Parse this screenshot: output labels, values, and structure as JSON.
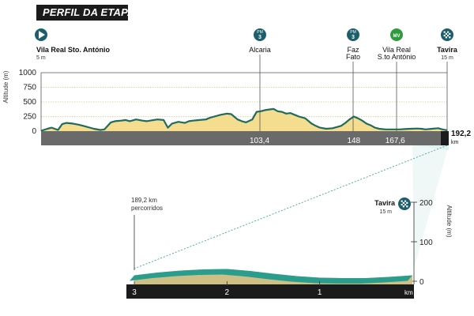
{
  "header": {
    "title": "PERFIL DA ETAPA"
  },
  "colors": {
    "terrain_fill": "#f4dd8f",
    "profile_line": "#1f6b5e",
    "road_bar": "#1b1b1b",
    "road_bar_light": "#6a6a6a",
    "sprint_icon": "#2e9b3e",
    "climb_icon": "#1c5f6b",
    "teal_surface": "#2a9d8c",
    "finish_surface_fill": "#cdbf86",
    "grid_dotted": "#cccc88"
  },
  "markers": [
    {
      "icon": "start-flag-icon",
      "name": "Vila Real Sto. António",
      "sub": "5 m"
    },
    {
      "icon": "mountain-pass-icon",
      "badge_top": "PM",
      "badge_num": "3",
      "name": "Alcaria"
    },
    {
      "icon": "mountain-pass-icon",
      "badge_top": "PM",
      "badge_num": "3",
      "name": "Faz\nFato"
    },
    {
      "icon": "sprint-icon",
      "badge_top": "MV",
      "name": "Vila Real\nS.to António"
    },
    {
      "icon": "finish-flag-icon",
      "name": "Tavira",
      "sub": "15 m"
    }
  ],
  "chart_data": [
    {
      "type": "area",
      "title": "",
      "ylabel": "Altitude (m)",
      "xlabel": "",
      "ylim": [
        0,
        1000
      ],
      "xlim": [
        0,
        192.2
      ],
      "y_ticks": [
        "0",
        "250",
        "500",
        "750",
        "1000"
      ],
      "x_labels": [
        {
          "value": 103.4,
          "label": "103,4"
        },
        {
          "value": 148,
          "label": "148"
        },
        {
          "value": 167.6,
          "label": "167,6"
        }
      ],
      "end_label": "192,2",
      "end_unit": "km",
      "series": [
        {
          "x": [
            0,
            3,
            5,
            8,
            10,
            12,
            15,
            18,
            20,
            25,
            28,
            30,
            33,
            35,
            38,
            40,
            42,
            45,
            48,
            50,
            55,
            58,
            60,
            62,
            65,
            68,
            70,
            72,
            75,
            78,
            80,
            85,
            88,
            90,
            93,
            95,
            97,
            100,
            102,
            104,
            106,
            108,
            110,
            112,
            114,
            116,
            118,
            120,
            122,
            125,
            128,
            130,
            132,
            135,
            138,
            140,
            142,
            144,
            146,
            148,
            150,
            152,
            154,
            156,
            158,
            160,
            163,
            165,
            168,
            170,
            172,
            175,
            178,
            180,
            182,
            185,
            188,
            190,
            192.2
          ],
          "y": [
            5,
            40,
            60,
            20,
            120,
            140,
            130,
            110,
            90,
            40,
            20,
            30,
            150,
            170,
            180,
            190,
            170,
            200,
            180,
            170,
            200,
            190,
            60,
            130,
            160,
            140,
            170,
            180,
            190,
            200,
            230,
            280,
            300,
            290,
            200,
            170,
            150,
            200,
            330,
            340,
            360,
            370,
            380,
            340,
            330,
            300,
            310,
            280,
            250,
            220,
            130,
            90,
            60,
            40,
            50,
            70,
            90,
            140,
            200,
            250,
            220,
            180,
            130,
            100,
            60,
            40,
            30,
            30,
            30,
            30,
            35,
            40,
            45,
            40,
            30,
            40,
            50,
            30,
            15
          ]
        }
      ]
    },
    {
      "type": "area",
      "title": "",
      "ylabel": "Altitude (m)",
      "ylim": [
        0,
        200
      ],
      "y_ticks": [
        "0",
        "100",
        "200"
      ],
      "x_ticks": [
        "3",
        "2",
        "1"
      ],
      "x_unit": "km",
      "start_note": "189,2 km\npercorridos",
      "series": [
        {
          "x": [
            3,
            2.75,
            2.5,
            2.25,
            2,
            1.75,
            1.5,
            1.25,
            1,
            0.75,
            0.5,
            0.25,
            0
          ],
          "y": [
            15,
            22,
            27,
            30,
            31,
            26,
            19,
            13,
            9,
            8,
            8,
            11,
            15
          ]
        }
      ]
    }
  ]
}
